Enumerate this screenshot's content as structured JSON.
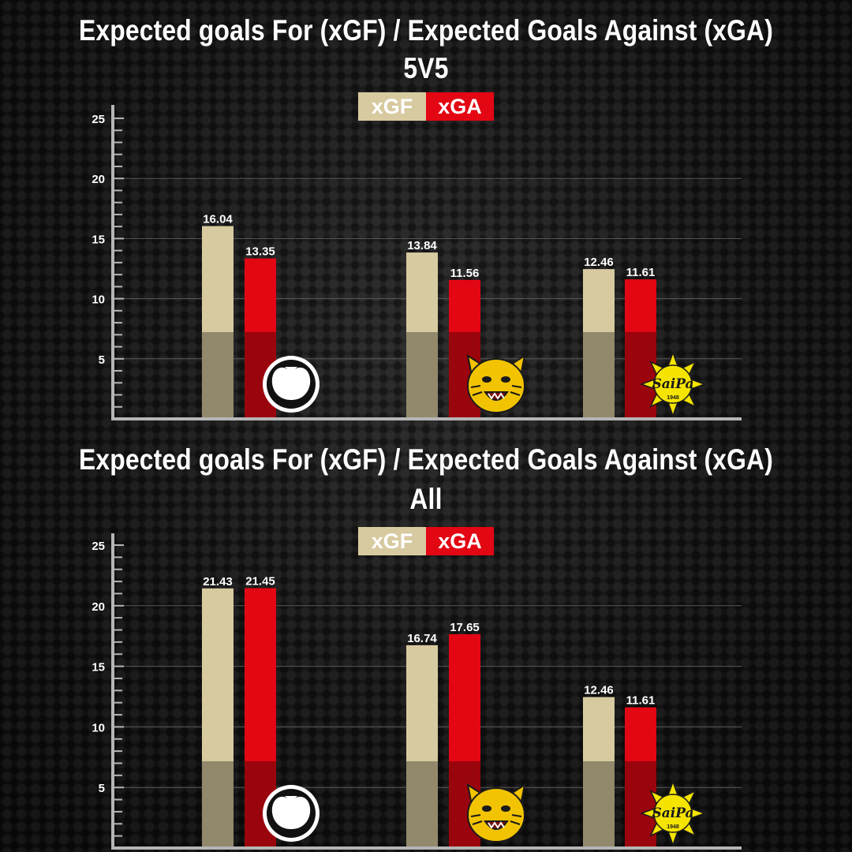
{
  "colors": {
    "xgf": "#d8caa0",
    "xga": "#e30613",
    "axis": "#b5b5b5",
    "grid": "#5a5a5a"
  },
  "legend": {
    "xgf": "xGF",
    "xga": "xGA"
  },
  "panels": [
    {
      "title": "Expected goals For (xGF) / Expected Goals Against (xGA)",
      "subtitle": "5V5"
    },
    {
      "title": "Expected goals For (xGF) / Expected Goals Against (xGA)",
      "subtitle": "All"
    }
  ],
  "teams": [
    {
      "logo": "spade-icon"
    },
    {
      "logo": "lynx-icon"
    },
    {
      "logo": "saipa-star-icon",
      "logo_text": "SaiPa",
      "logo_year": "1948"
    }
  ],
  "chart_data": [
    {
      "type": "bar",
      "title": "Expected goals For (xGF) / Expected Goals Against (xGA)",
      "subtitle": "5V5",
      "series": [
        {
          "name": "xGF",
          "values": [
            16.04,
            13.84,
            12.46
          ]
        },
        {
          "name": "xGA",
          "values": [
            13.35,
            11.56,
            11.61
          ]
        }
      ],
      "ylim": [
        0,
        25
      ],
      "yticks": [
        5,
        10,
        15,
        20,
        25
      ],
      "grid": true,
      "legend_position": "top-center"
    },
    {
      "type": "bar",
      "title": "Expected goals For (xGF) / Expected Goals Against (xGA)",
      "subtitle": "All",
      "series": [
        {
          "name": "xGF",
          "values": [
            21.43,
            16.74,
            12.46
          ]
        },
        {
          "name": "xGA",
          "values": [
            21.45,
            17.65,
            11.61
          ]
        }
      ],
      "ylim": [
        0,
        25
      ],
      "yticks": [
        5,
        10,
        15,
        20,
        25
      ],
      "grid": true,
      "legend_position": "top-center"
    }
  ]
}
